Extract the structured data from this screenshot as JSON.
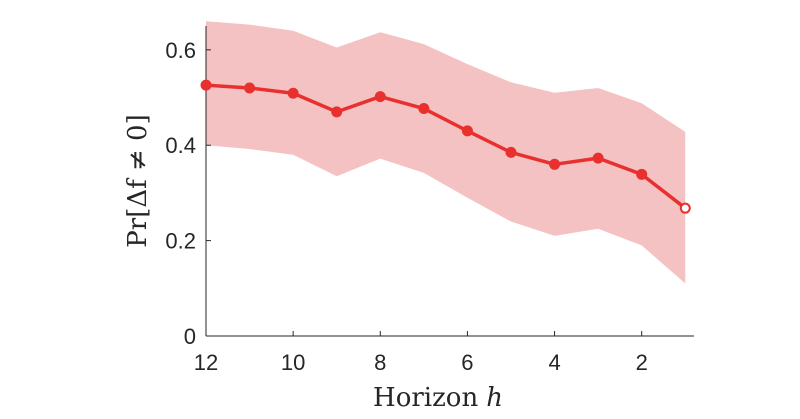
{
  "chart_data": {
    "type": "line",
    "title": "",
    "xlabel_prefix": "Horizon",
    "xlabel_var": "h",
    "ylabel": "Pr[Δf ≠ 0]",
    "xlim": [
      12.0,
      0.8
    ],
    "ylim": [
      0,
      0.65
    ],
    "x_reversed": true,
    "xticks": [
      12,
      10,
      8,
      6,
      4,
      2
    ],
    "yticks": [
      0,
      0.2,
      0.4,
      0.6
    ],
    "ytick_labels": [
      "0",
      "0.2",
      "0.4",
      "0.6"
    ],
    "grid": false,
    "legend": "none",
    "series": [
      {
        "x": [
          12,
          11,
          10,
          9,
          8,
          7,
          6,
          5,
          4,
          3,
          2,
          1
        ],
        "values": [
          0.526,
          0.52,
          0.509,
          0.47,
          0.502,
          0.477,
          0.43,
          0.385,
          0.36,
          0.373,
          0.339,
          0.268
        ],
        "band_lower": [
          0.4,
          0.392,
          0.38,
          0.335,
          0.372,
          0.342,
          0.29,
          0.24,
          0.21,
          0.225,
          0.19,
          0.11
        ],
        "band_upper": [
          0.66,
          0.653,
          0.64,
          0.605,
          0.637,
          0.612,
          0.57,
          0.532,
          0.51,
          0.52,
          0.488,
          0.428
        ],
        "color": "#e8312f",
        "band_color": "#f4c2c2",
        "marker": "circle"
      }
    ]
  }
}
